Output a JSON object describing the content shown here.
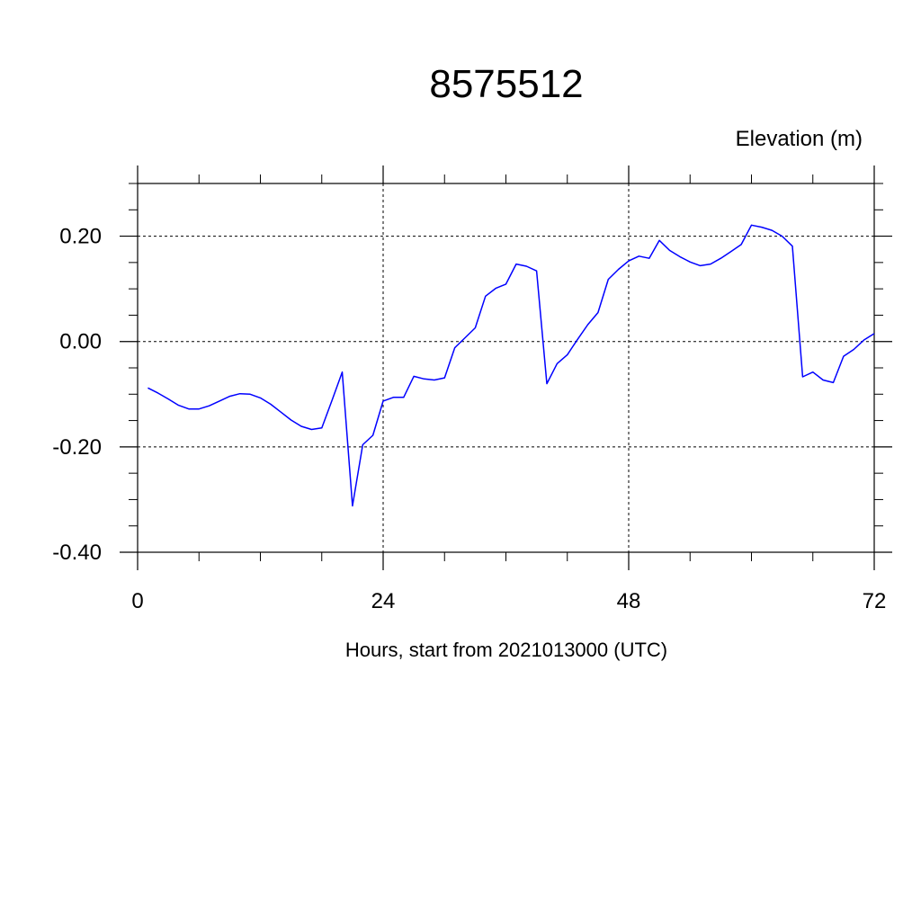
{
  "chart_data": {
    "type": "line",
    "title": "8575512",
    "ylabel": "Elevation (m)",
    "xlabel": "Hours, start from 2021013000 (UTC)",
    "xlim": [
      0,
      72
    ],
    "ylim": [
      -0.4,
      0.3
    ],
    "x_ticks": [
      0,
      24,
      48,
      72
    ],
    "x_tick_labels": [
      "0",
      "24",
      "48",
      "72"
    ],
    "y_ticks": [
      0.2,
      0.0,
      -0.2,
      -0.4
    ],
    "y_tick_labels": [
      "0.20",
      "0.00",
      "-0.20",
      "-0.40"
    ],
    "grid": true,
    "series": [
      {
        "color": "#0000ff",
        "x": [
          1,
          2,
          3,
          4,
          5,
          6,
          7,
          8,
          9,
          10,
          11,
          12,
          13,
          14,
          15,
          16,
          17,
          18,
          19,
          20,
          21,
          22,
          23,
          24,
          25,
          26,
          27,
          28,
          29,
          30,
          31,
          32,
          33,
          34,
          35,
          36,
          37,
          38,
          39,
          40,
          41,
          42,
          43,
          44,
          45,
          46,
          47,
          48,
          49,
          50,
          51,
          52,
          53,
          54,
          55,
          56,
          57,
          58,
          59,
          60,
          61,
          62,
          63,
          64,
          65,
          66,
          67,
          68,
          69,
          70,
          71,
          72
        ],
        "y": [
          -0.088,
          -0.098,
          -0.109,
          -0.121,
          -0.128,
          -0.128,
          -0.122,
          -0.113,
          -0.104,
          -0.099,
          -0.1,
          -0.107,
          -0.119,
          -0.134,
          -0.149,
          -0.161,
          -0.167,
          -0.164,
          -0.112,
          -0.058,
          -0.312,
          -0.196,
          -0.178,
          -0.113,
          -0.106,
          -0.106,
          -0.066,
          -0.071,
          -0.073,
          -0.069,
          -0.012,
          0.007,
          0.026,
          0.086,
          0.101,
          0.109,
          0.147,
          0.143,
          0.134,
          -0.08,
          -0.042,
          -0.025,
          0.004,
          0.032,
          0.055,
          0.118,
          0.137,
          0.153,
          0.162,
          0.158,
          0.192,
          0.173,
          0.161,
          0.151,
          0.144,
          0.147,
          0.158,
          0.171,
          0.184,
          0.221,
          0.217,
          0.211,
          0.2,
          0.181,
          -0.067,
          -0.058,
          -0.073,
          -0.078,
          -0.028,
          -0.015,
          0.003,
          0.015
        ]
      }
    ]
  }
}
